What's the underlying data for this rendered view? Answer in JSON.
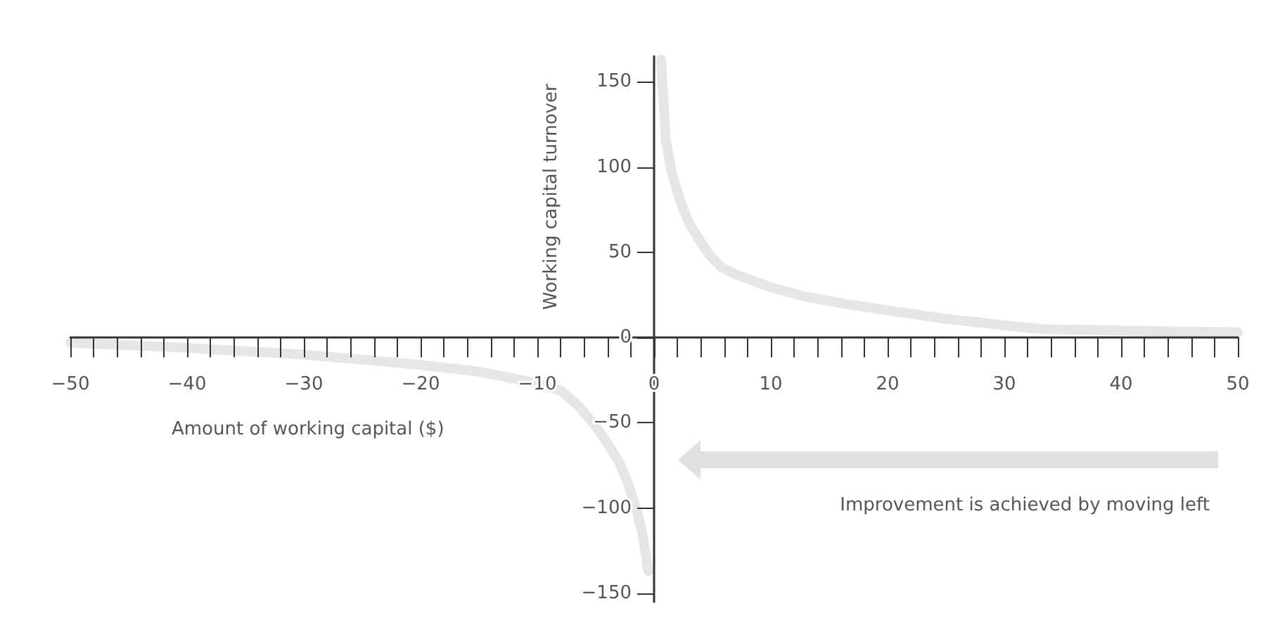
{
  "chart_data": {
    "type": "line",
    "xlabel": "Amount of working capital ($)",
    "ylabel": "Working capital turnover",
    "annotations": [
      "Improvement is achieved by moving left"
    ],
    "series": [
      {
        "color": "#e6e6e6",
        "x": [
          -50,
          -40,
          -30,
          -25,
          -20,
          -15,
          -12,
          -10,
          -8,
          -6.5,
          -5,
          -4,
          -3,
          -2.2,
          -1.5,
          -1,
          -0.7,
          -0.5
        ],
        "values": [
          -3,
          -6,
          -10,
          -13,
          -16,
          -20,
          -24,
          -27,
          -31,
          -40,
          -52,
          -62,
          -73,
          -86,
          -101,
          -115,
          -128,
          -137
        ]
      },
      {
        "color": "#e6e6e6",
        "x": [
          0.6,
          1,
          1.5,
          2.2,
          3,
          3.9,
          4.8,
          5.8,
          7,
          10.2,
          13,
          17,
          25,
          33,
          41,
          50
        ],
        "values": [
          163,
          116,
          97,
          81,
          67,
          57,
          48,
          41,
          37,
          29,
          24,
          19,
          11,
          5,
          4,
          3
        ]
      }
    ],
    "xlim": [
      -50,
      50
    ],
    "ylim": [
      -155,
      165
    ],
    "xticks": [
      {
        "value": -50,
        "label": "−50"
      },
      {
        "value": -48,
        "label": null
      },
      {
        "value": -46,
        "label": null
      },
      {
        "value": -44,
        "label": null
      },
      {
        "value": -42,
        "label": null
      },
      {
        "value": -40,
        "label": "−40"
      },
      {
        "value": -38,
        "label": null
      },
      {
        "value": -36,
        "label": null
      },
      {
        "value": -34,
        "label": null
      },
      {
        "value": -32,
        "label": null
      },
      {
        "value": -30,
        "label": "−30"
      },
      {
        "value": -28,
        "label": null
      },
      {
        "value": -26,
        "label": null
      },
      {
        "value": -24,
        "label": null
      },
      {
        "value": -22,
        "label": null
      },
      {
        "value": -20,
        "label": "−20"
      },
      {
        "value": -18,
        "label": null
      },
      {
        "value": -16,
        "label": null
      },
      {
        "value": -14,
        "label": null
      },
      {
        "value": -12,
        "label": null
      },
      {
        "value": -10,
        "label": "−10"
      },
      {
        "value": -8,
        "label": null
      },
      {
        "value": -6,
        "label": null
      },
      {
        "value": -4,
        "label": null
      },
      {
        "value": -2,
        "label": null
      },
      0,
      {
        "value": 2,
        "label": null
      },
      {
        "value": 4,
        "label": null
      },
      {
        "value": 6,
        "label": null
      },
      {
        "value": 8,
        "label": null
      },
      10,
      {
        "value": 12,
        "label": null
      },
      {
        "value": 14,
        "label": null
      },
      {
        "value": 16,
        "label": null
      },
      {
        "value": 18,
        "label": null
      },
      20,
      {
        "value": 22,
        "label": null
      },
      {
        "value": 24,
        "label": null
      },
      {
        "value": 26,
        "label": null
      },
      {
        "value": 28,
        "label": null
      },
      30,
      {
        "value": 32,
        "label": null
      },
      {
        "value": 34,
        "label": null
      },
      {
        "value": 36,
        "label": null
      },
      {
        "value": 38,
        "label": null
      },
      40,
      {
        "value": 42,
        "label": null
      },
      {
        "value": 44,
        "label": null
      },
      {
        "value": 46,
        "label": null
      },
      {
        "value": 48,
        "label": null
      },
      50
    ],
    "yticks": [
      {
        "value": -150,
        "label": "−150"
      },
      {
        "value": -100,
        "label": "−100"
      },
      {
        "value": -50,
        "label": "−50"
      },
      0,
      50,
      100,
      150
    ],
    "line_style": "solid"
  }
}
